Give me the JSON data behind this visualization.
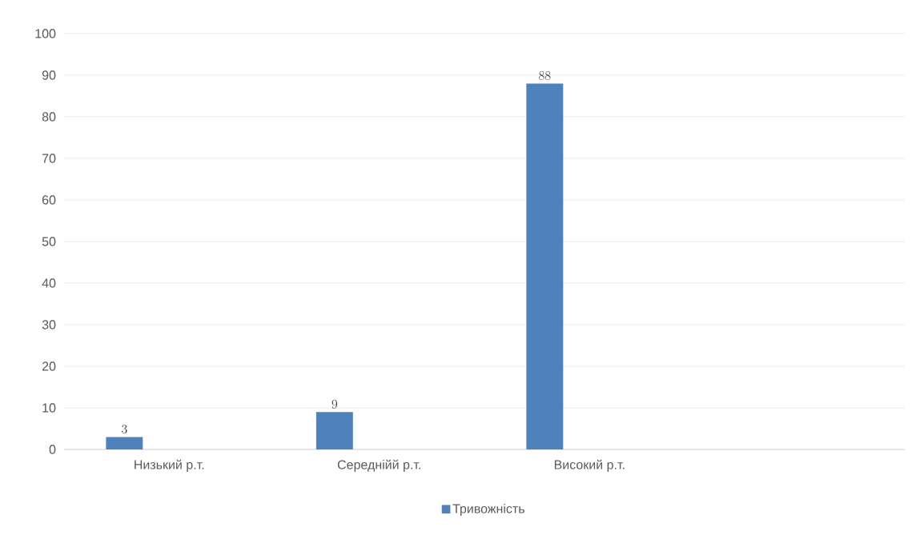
{
  "chart_data": {
    "type": "bar",
    "categories": [
      "Низький р.т.",
      "Середнійй р.т.",
      "Високий р.т.",
      null
    ],
    "series": [
      {
        "name": "Тривожність",
        "color": "#4f81bd",
        "values": [
          3,
          9,
          88,
          null
        ]
      }
    ],
    "ylim": [
      0,
      100
    ],
    "yticks": [
      0,
      10,
      20,
      30,
      40,
      50,
      60,
      70,
      80,
      90,
      100
    ],
    "grid": "y",
    "legend": "bottom",
    "data_labels": true
  }
}
